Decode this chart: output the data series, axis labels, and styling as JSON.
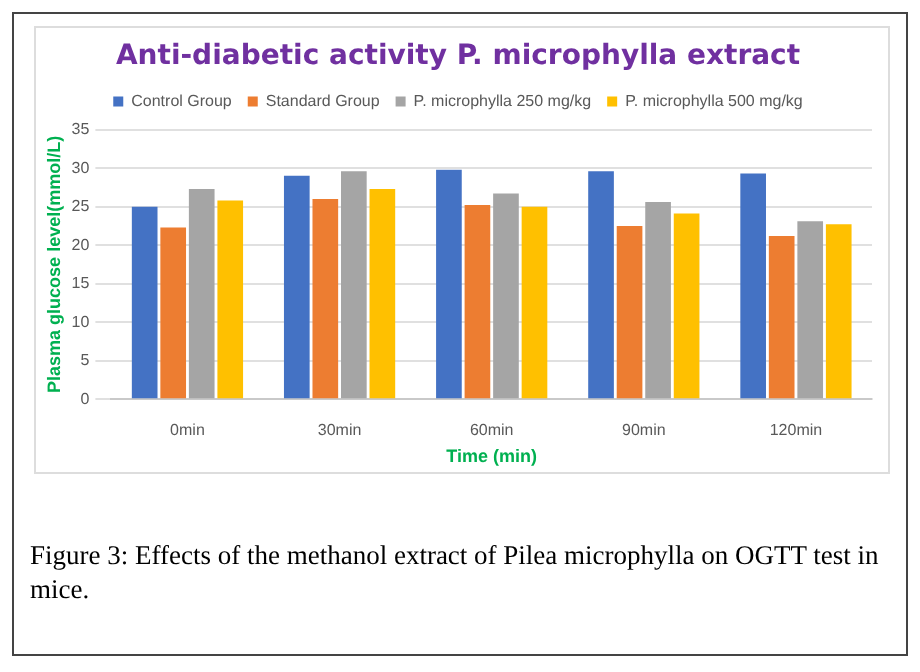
{
  "chart_data": {
    "type": "bar",
    "title": "Anti-diabetic activity P. microphylla extract",
    "xlabel": "Time (min)",
    "ylabel": "Plasma glucose level(mmol/L)",
    "categories": [
      "0min",
      "30min",
      "60min",
      "90min",
      "120min"
    ],
    "series": [
      {
        "name": "Control Group",
        "color": "#4472c4",
        "values": [
          25.0,
          29.0,
          29.8,
          29.6,
          29.3
        ]
      },
      {
        "name": "Standard Group",
        "color": "#ed7d31",
        "values": [
          22.3,
          26.0,
          25.2,
          22.5,
          21.2
        ]
      },
      {
        "name": "P. microphylla 250 mg/kg",
        "color": "#a5a5a5",
        "values": [
          27.3,
          29.6,
          26.7,
          25.6,
          23.1
        ]
      },
      {
        "name": "P. microphylla 500 mg/kg",
        "color": "#ffc000",
        "values": [
          25.8,
          27.3,
          25.0,
          24.1,
          22.7
        ]
      }
    ],
    "ylim": [
      0,
      35
    ],
    "yticks": [
      0,
      5,
      10,
      15,
      20,
      25,
      30,
      35
    ],
    "grid": "y",
    "legend": "top",
    "annotations": [
      "Figure 3: Effects  of the methanol extract of Pilea microphylla on OGTT test in mice."
    ]
  }
}
